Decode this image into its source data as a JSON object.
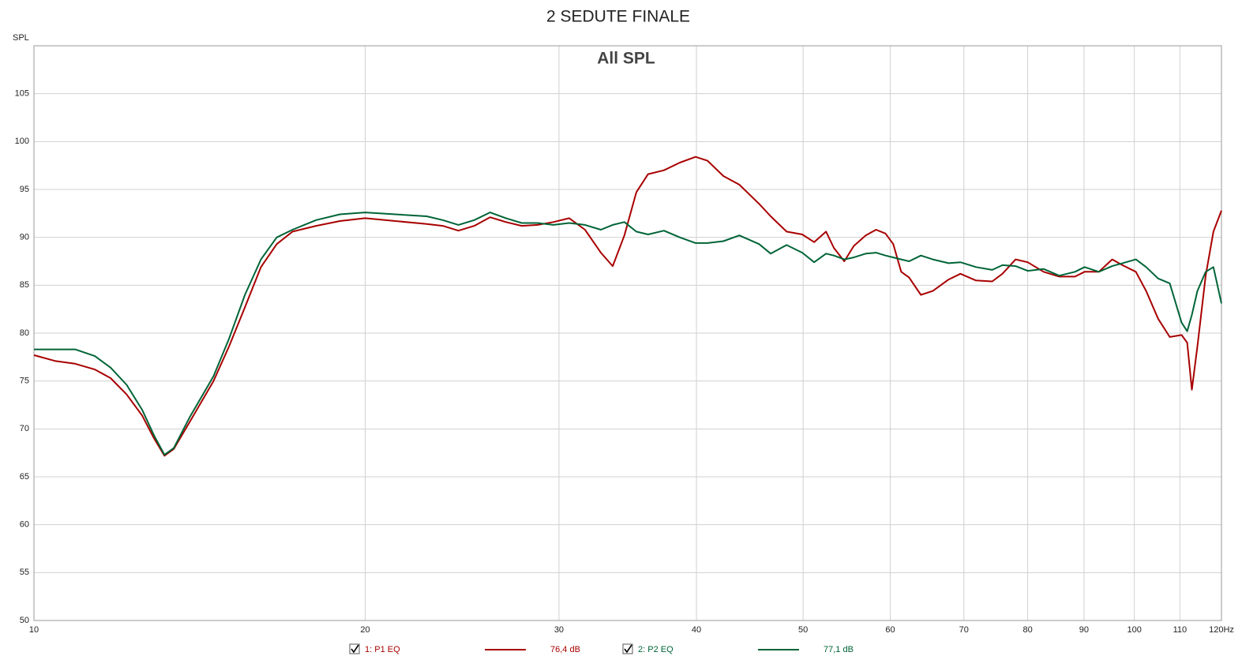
{
  "chart_data": {
    "type": "line",
    "title": "2 SEDUTE FINALE",
    "subtitle": "All SPL",
    "y_label": "SPL",
    "log_x": true,
    "grid": true,
    "xlim": [
      10,
      120
    ],
    "ylim": [
      50,
      110
    ],
    "xticks": [
      10,
      20,
      30,
      40,
      50,
      60,
      70,
      80,
      90,
      100,
      110,
      {
        "value": 120,
        "label": "120Hz"
      }
    ],
    "yticks": [
      50,
      55,
      60,
      65,
      70,
      75,
      80,
      85,
      90,
      95,
      100,
      105
    ],
    "x": [
      10,
      10.45,
      10.9,
      11.36,
      11.74,
      12.14,
      12.54,
      12.86,
      13.14,
      13.4,
      13.85,
      14.56,
      15.04,
      15.55,
      16.08,
      16.62,
      17.18,
      18.05,
      18.97,
      20,
      21.3,
      22.75,
      23.52,
      24.31,
      25.13,
      25.97,
      26.85,
      27.75,
      28.69,
      29.65,
      30.65,
      31.68,
      32.75,
      33.57,
      34.4,
      35.27,
      36.15,
      37.37,
      38.63,
      39.93,
      40.94,
      42.32,
      43.75,
      45.6,
      46.72,
      48.3,
      49.92,
      51.17,
      52.46,
      53.33,
      54.5,
      55.59,
      57,
      58.24,
      59.41,
      60.38,
      61.4,
      62.42,
      63.98,
      65.59,
      67.8,
      69.5,
      71.8,
      74.27,
      75.88,
      78,
      80,
      82.7,
      85.46,
      88.33,
      90.11,
      92.84,
      95.47,
      97.55,
      100.33,
      102.5,
      105.1,
      107.7,
      110.4,
      111.7,
      112.8,
      114.1,
      116.1,
      118,
      120
    ],
    "series": [
      {
        "name": "1: P1 EQ",
        "level": "76,4 dB",
        "color": "#a80000",
        "values": [
          77.7,
          77.1,
          76.8,
          76.2,
          75.3,
          73.6,
          71.4,
          69.0,
          67.2,
          67.9,
          70.7,
          75.0,
          78.6,
          82.7,
          86.9,
          89.3,
          90.6,
          91.2,
          91.7,
          92.0,
          91.7,
          91.4,
          91.2,
          90.7,
          91.2,
          92.1,
          91.6,
          91.2,
          91.3,
          91.6,
          92.0,
          90.8,
          88.4,
          87.0,
          90.2,
          94.7,
          96.6,
          97.0,
          97.8,
          98.4,
          98.0,
          96.4,
          95.5,
          93.5,
          92.2,
          90.6,
          90.3,
          89.5,
          90.6,
          88.9,
          87.5,
          89.1,
          90.2,
          90.8,
          90.4,
          89.3,
          86.4,
          85.8,
          84.0,
          84.4,
          85.6,
          86.2,
          85.5,
          85.4,
          86.2,
          87.7,
          87.4,
          86.4,
          85.9,
          85.9,
          86.4,
          86.4,
          87.7,
          87.1,
          86.4,
          84.4,
          81.5,
          79.6,
          79.8,
          79.0,
          74.1,
          78.6,
          86.0,
          90.6,
          92.8
        ]
      },
      {
        "name": "2: P2 EQ",
        "level": "77,1 dB",
        "color": "#006437",
        "values": [
          78.3,
          78.3,
          78.3,
          77.6,
          76.4,
          74.6,
          72.0,
          69.3,
          67.3,
          68.0,
          71.2,
          75.5,
          79.4,
          84.0,
          87.7,
          90.0,
          90.8,
          91.8,
          92.4,
          92.6,
          92.4,
          92.2,
          91.8,
          91.3,
          91.8,
          92.6,
          92.0,
          91.5,
          91.5,
          91.3,
          91.5,
          91.3,
          90.8,
          91.3,
          91.6,
          90.6,
          90.3,
          90.7,
          90.0,
          89.4,
          89.4,
          89.6,
          90.2,
          89.3,
          88.3,
          89.2,
          88.4,
          87.4,
          88.3,
          88.1,
          87.7,
          87.9,
          88.3,
          88.4,
          88.1,
          87.9,
          87.7,
          87.5,
          88.1,
          87.7,
          87.3,
          87.4,
          86.9,
          86.6,
          87.1,
          87.0,
          86.5,
          86.7,
          86.0,
          86.4,
          86.9,
          86.4,
          87.0,
          87.3,
          87.7,
          86.9,
          85.7,
          85.2,
          81.1,
          80.2,
          81.9,
          84.4,
          86.4,
          86.9,
          83.1
        ]
      }
    ]
  }
}
